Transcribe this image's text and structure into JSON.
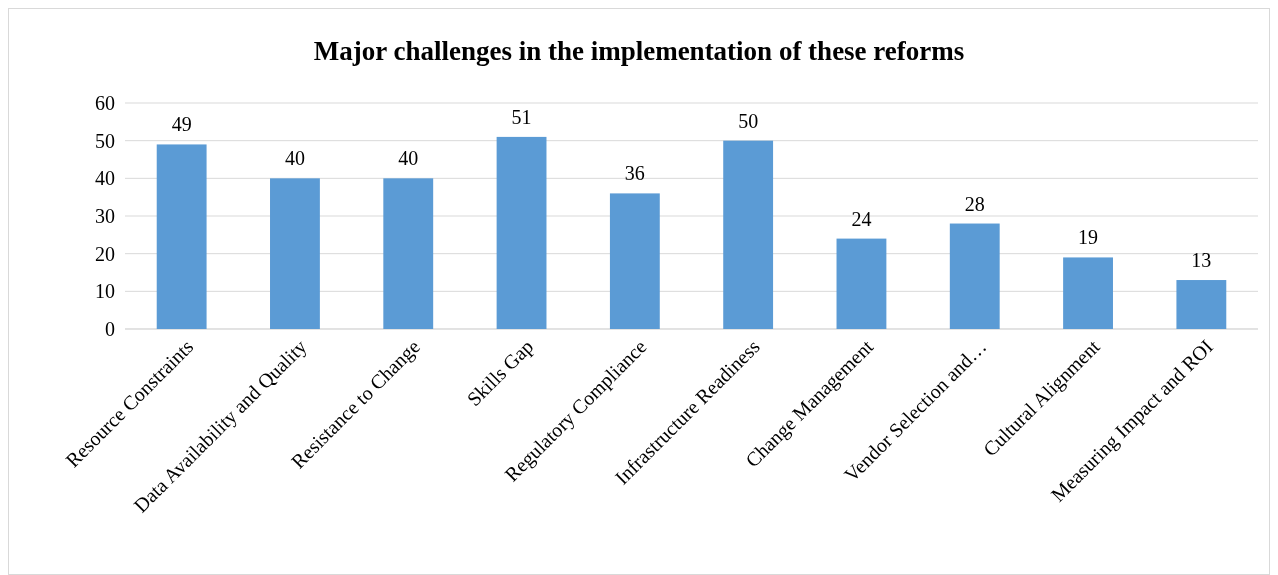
{
  "chart_data": {
    "type": "bar",
    "title": "Major challenges in the implementation of these reforms",
    "categories": [
      "Resource Constraints",
      "Data Availability and Quality",
      "Resistance to Change",
      "Skills Gap",
      "Regulatory Compliance",
      "Infrastructure Readiness",
      "Change Management",
      "Vendor Selection and…",
      "Cultural Alignment",
      "Measuring Impact and ROI"
    ],
    "values": [
      49,
      40,
      40,
      51,
      36,
      50,
      24,
      28,
      19,
      13
    ],
    "color": "#5b9bd5",
    "ylim": [
      0,
      60
    ],
    "yticks": [
      0,
      10,
      20,
      30,
      40,
      50,
      60
    ],
    "grid": "y",
    "data_labels": true
  }
}
